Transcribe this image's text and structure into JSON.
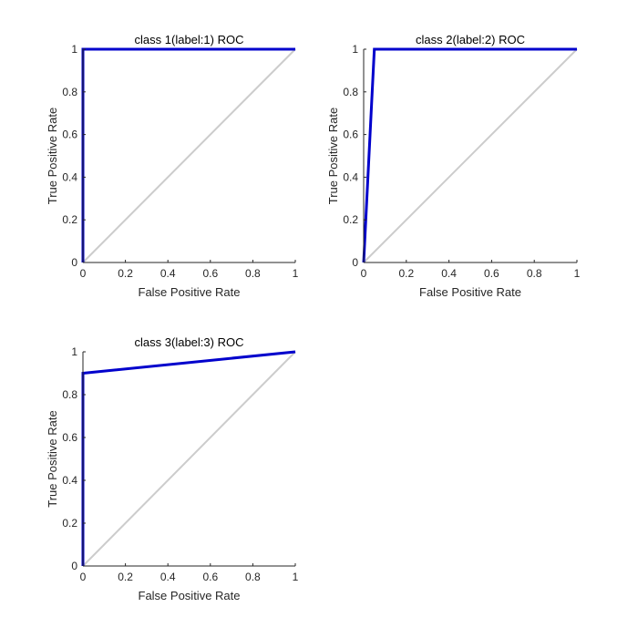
{
  "chart_data": [
    {
      "type": "line",
      "title": "class 1(label:1) ROC",
      "xlabel": "False Positive Rate",
      "ylabel": "True Positive Rate",
      "xlim": [
        0,
        1
      ],
      "ylim": [
        0,
        1
      ],
      "xticks": [
        "0",
        "0.2",
        "0.4",
        "0.6",
        "0.8",
        "1"
      ],
      "yticks": [
        "0",
        "0.2",
        "0.4",
        "0.6",
        "0.8",
        "1"
      ],
      "grid": false,
      "series": [
        {
          "color": "#0000cc",
          "x": [
            0,
            0,
            1
          ],
          "y": [
            0,
            1,
            1
          ]
        },
        {
          "color": "#cccccc",
          "x": [
            0,
            1
          ],
          "y": [
            0,
            1
          ]
        }
      ]
    },
    {
      "type": "line",
      "title": "class 2(label:2) ROC",
      "xlabel": "False Positive Rate",
      "ylabel": "True Positive Rate",
      "xlim": [
        0,
        1
      ],
      "ylim": [
        0,
        1
      ],
      "xticks": [
        "0",
        "0.2",
        "0.4",
        "0.6",
        "0.8",
        "1"
      ],
      "yticks": [
        "0",
        "0.2",
        "0.4",
        "0.6",
        "0.8",
        "1"
      ],
      "grid": false,
      "series": [
        {
          "color": "#0000cc",
          "x": [
            0,
            0.05,
            1
          ],
          "y": [
            0,
            1,
            1
          ]
        },
        {
          "color": "#cccccc",
          "x": [
            0,
            1
          ],
          "y": [
            0,
            1
          ]
        }
      ]
    },
    {
      "type": "line",
      "title": "class 3(label:3) ROC",
      "xlabel": "False Positive Rate",
      "ylabel": "True Positive Rate",
      "xlim": [
        0,
        1
      ],
      "ylim": [
        0,
        1
      ],
      "xticks": [
        "0",
        "0.2",
        "0.4",
        "0.6",
        "0.8",
        "1"
      ],
      "yticks": [
        "0",
        "0.2",
        "0.4",
        "0.6",
        "0.8",
        "1"
      ],
      "grid": false,
      "series": [
        {
          "color": "#0000cc",
          "x": [
            0,
            0,
            1
          ],
          "y": [
            0,
            0.9,
            1
          ]
        },
        {
          "color": "#cccccc",
          "x": [
            0,
            1
          ],
          "y": [
            0,
            1
          ]
        }
      ]
    }
  ]
}
